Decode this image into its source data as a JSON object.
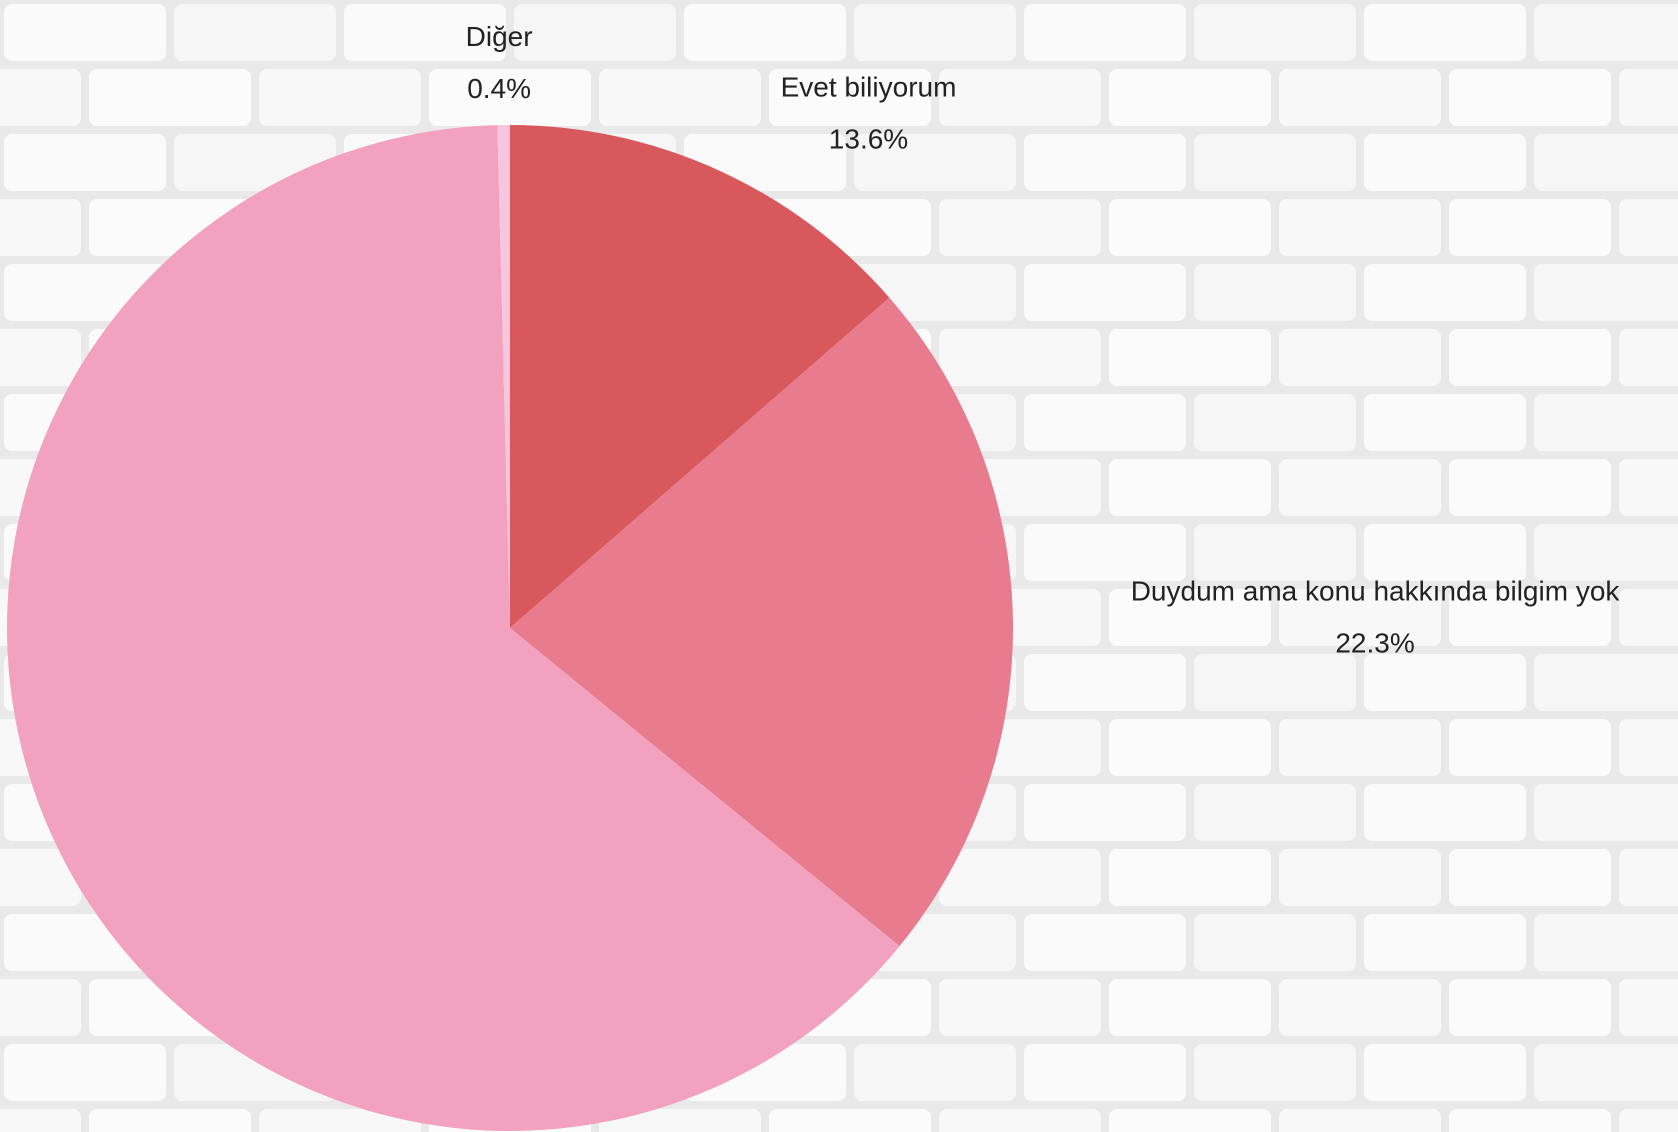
{
  "chart_data": {
    "type": "pie",
    "categories": [
      "Evet biliyorum",
      "Duydum ama konu hakkında bilgim yok",
      null,
      "Diğer"
    ],
    "values": [
      13.6,
      22.3,
      63.7,
      0.4
    ],
    "value_labels": [
      "13.6%",
      "22.3%",
      null,
      "0.4%"
    ],
    "colors": [
      "#d9585b",
      "#e97b8f",
      "#f2a2bf",
      "#f7c5dc"
    ]
  }
}
